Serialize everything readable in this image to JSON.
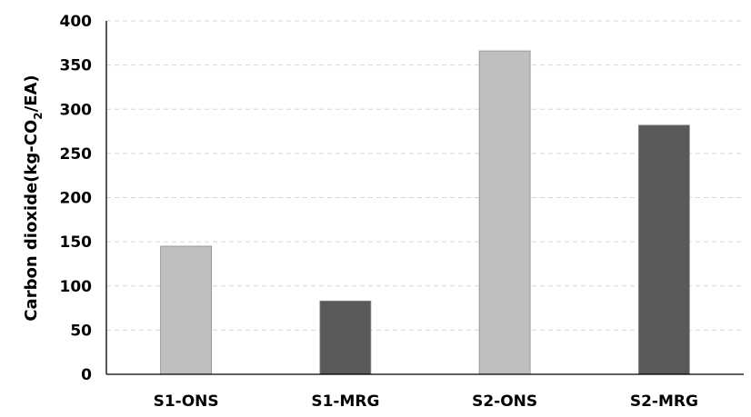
{
  "chart_data": {
    "type": "bar",
    "categories": [
      "S1-ONS",
      "S1-MRG",
      "S2-ONS",
      "S2-MRG"
    ],
    "values": [
      145,
      83,
      366,
      282
    ],
    "bar_colors": [
      "#bfbfbf",
      "#595959",
      "#bfbfbf",
      "#595959"
    ],
    "title": "",
    "xlabel": "",
    "ylabel": {
      "prefix": "Carbon dioxide(kg-CO",
      "subscript": "2",
      "suffix": "/EA)"
    },
    "ylim": [
      0,
      400
    ],
    "yticks": [
      "0",
      "50",
      "100",
      "150",
      "200",
      "250",
      "300",
      "350",
      "400"
    ],
    "grid": true,
    "legend": "none"
  }
}
